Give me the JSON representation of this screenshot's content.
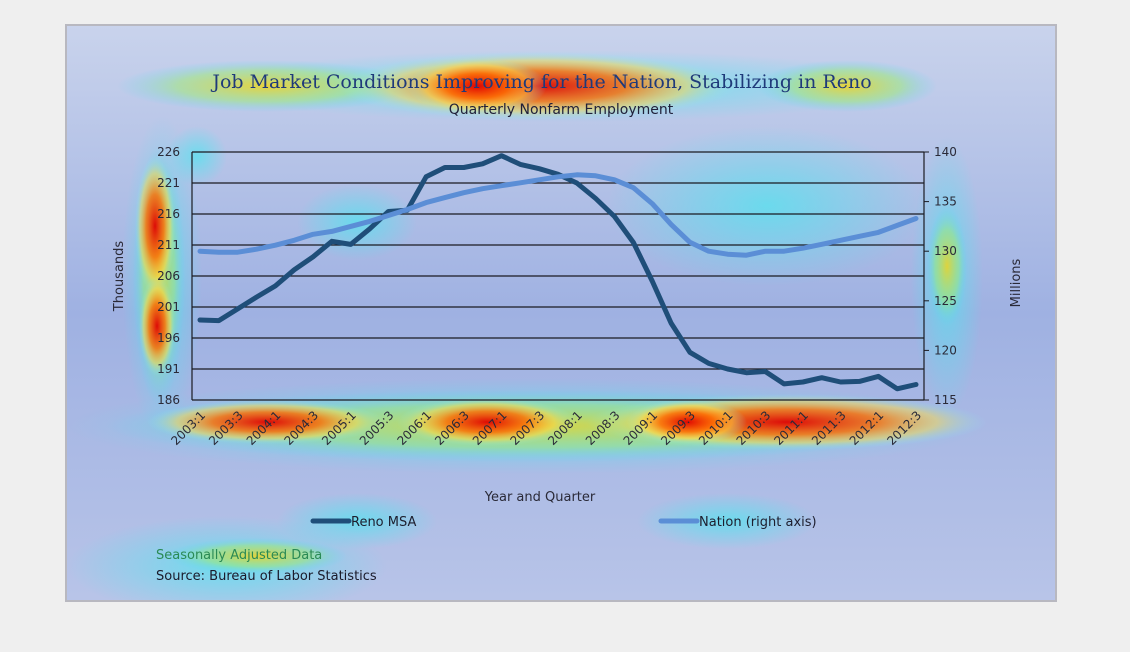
{
  "chart_data": {
    "type": "line",
    "title": "Job Market Conditions Improving for the Nation, Stabilizing in Reno",
    "subtitle": "Quarterly Nonfarm Employment",
    "xlabel": "Year and Quarter",
    "ylabel_left": "Thousands",
    "ylabel_right": "Millions",
    "y_left_lim": [
      186,
      226
    ],
    "y_left_ticks": [
      226,
      221,
      216,
      211,
      206,
      201,
      196,
      191,
      186
    ],
    "y_right_lim": [
      115,
      140
    ],
    "y_right_ticks": [
      140,
      135,
      130,
      125,
      120,
      115
    ],
    "x_tick_labels": [
      "2003:1",
      "2003:3",
      "2004:1",
      "2004:3",
      "2005:1",
      "2005:3",
      "2006:1",
      "2006:3",
      "2007:1",
      "2007:3",
      "2008:1",
      "2008:3",
      "2009:1",
      "2009:3",
      "2010:1",
      "2010:3",
      "2011:1",
      "2011:3",
      "2012:1",
      "2012:3"
    ],
    "x": [
      "2003:1",
      "2003:2",
      "2003:3",
      "2003:4",
      "2004:1",
      "2004:2",
      "2004:3",
      "2004:4",
      "2005:1",
      "2005:2",
      "2005:3",
      "2005:4",
      "2006:1",
      "2006:2",
      "2006:3",
      "2006:4",
      "2007:1",
      "2007:2",
      "2007:3",
      "2007:4",
      "2008:1",
      "2008:2",
      "2008:3",
      "2008:4",
      "2009:1",
      "2009:2",
      "2009:3",
      "2009:4",
      "2010:1",
      "2010:2",
      "2010:3",
      "2010:4",
      "2011:1",
      "2011:2",
      "2011:3",
      "2011:4",
      "2012:1",
      "2012:2",
      "2012:3"
    ],
    "series": [
      {
        "name": "Reno MSA",
        "axis": "left",
        "color": "#1f4e79",
        "values": [
          198.9,
          198.8,
          200.7,
          202.6,
          204.4,
          207.0,
          209.1,
          211.6,
          211.1,
          213.6,
          216.4,
          216.6,
          222.0,
          223.5,
          223.5,
          224.1,
          225.4,
          224.0,
          223.3,
          222.4,
          221.0,
          218.5,
          215.6,
          211.4,
          205.2,
          198.4,
          193.7,
          191.9,
          191.0,
          190.4,
          190.6,
          188.6,
          188.9,
          189.6,
          188.9,
          189.0,
          189.8,
          187.8,
          188.5
        ]
      },
      {
        "name": "Nation (right axis)",
        "axis": "right",
        "color": "#5b8ed6",
        "values": [
          130.0,
          129.9,
          129.9,
          130.2,
          130.6,
          131.1,
          131.7,
          132.0,
          132.5,
          133.0,
          133.6,
          134.2,
          134.9,
          135.4,
          135.9,
          136.3,
          136.6,
          136.9,
          137.2,
          137.5,
          137.7,
          137.6,
          137.2,
          136.4,
          134.8,
          132.7,
          130.9,
          130.0,
          129.7,
          129.6,
          130.0,
          130.0,
          130.3,
          130.7,
          131.1,
          131.5,
          131.9,
          132.6,
          133.3
        ]
      }
    ],
    "grid": true,
    "legend": "bottom"
  },
  "notes": {
    "line1": "Seasonally Adjusted Data",
    "line2": "Source: Bureau of Labor  Statistics"
  }
}
